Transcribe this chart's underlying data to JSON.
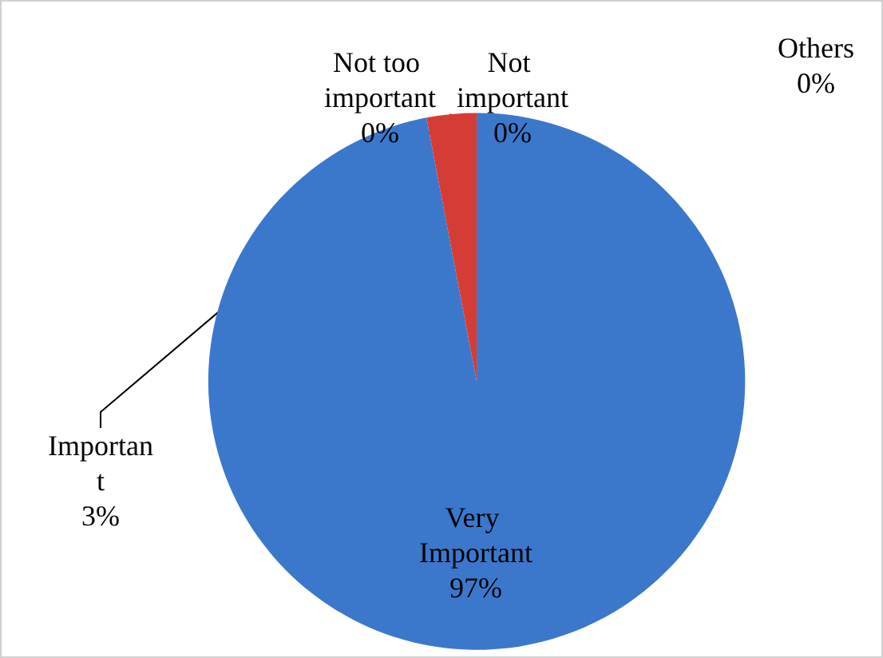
{
  "chart_data": {
    "type": "pie",
    "categories": [
      "Very Important",
      "Important",
      "Not too important",
      "Not important",
      "Others"
    ],
    "values": [
      97,
      3,
      0,
      0,
      0
    ],
    "colors": [
      "#3b78cc",
      "#d63c36",
      "#8cb04a",
      "#7a5ea8",
      "#3fa6c0"
    ],
    "value_labels": [
      "97%",
      "3%",
      "0%",
      "0%",
      "0%"
    ]
  }
}
